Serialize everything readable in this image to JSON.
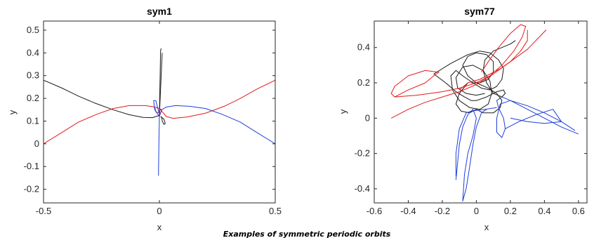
{
  "caption": "Examples of symmetric periodic orbits",
  "colors": {
    "black": "#1a1a1a",
    "red": "#e31a1c",
    "blue": "#1f3fd8",
    "axes": "#262626"
  },
  "chart_data": [
    {
      "type": "line",
      "title": "sym1",
      "xlabel": "x",
      "ylabel": "y",
      "xlim": [
        -0.5,
        0.5
      ],
      "ylim": [
        -0.26,
        0.54
      ],
      "xticks": [
        -0.5,
        0,
        0.5
      ],
      "xtick_labels": [
        "-0.5",
        "0",
        "0.5"
      ],
      "yticks": [
        -0.2,
        -0.1,
        0,
        0.1,
        0.2,
        0.3,
        0.4,
        0.5
      ],
      "ytick_labels": [
        "-0.2",
        "-0.1",
        "0",
        "0.1",
        "0.2",
        "0.3",
        "0.4",
        "0.5"
      ],
      "grid": false,
      "series": [
        {
          "color": "black",
          "points": [
            [
              -0.5,
              0.28
            ],
            [
              -0.42,
              0.245
            ],
            [
              -0.35,
              0.21
            ],
            [
              -0.28,
              0.18
            ],
            [
              -0.2,
              0.15
            ],
            [
              -0.13,
              0.128
            ],
            [
              -0.07,
              0.116
            ],
            [
              -0.03,
              0.115
            ],
            [
              0.0,
              0.125
            ],
            [
              0.012,
              0.4
            ]
          ]
        },
        {
          "color": "black",
          "points": [
            [
              0.0,
              0.125
            ],
            [
              0.005,
              0.41
            ],
            [
              0.008,
              0.42
            ]
          ]
        },
        {
          "color": "black",
          "points": [
            [
              0.005,
              0.12
            ],
            [
              0.02,
              0.108
            ],
            [
              0.025,
              0.09
            ],
            [
              0.02,
              0.085
            ],
            [
              0.012,
              0.1
            ],
            [
              0.01,
              0.12
            ]
          ]
        },
        {
          "color": "red",
          "points": [
            [
              -0.5,
              0.0
            ],
            [
              -0.42,
              0.05
            ],
            [
              -0.35,
              0.095
            ],
            [
              -0.27,
              0.13
            ],
            [
              -0.2,
              0.155
            ],
            [
              -0.13,
              0.168
            ],
            [
              -0.06,
              0.168
            ],
            [
              -0.02,
              0.162
            ],
            [
              0.0,
              0.155
            ],
            [
              0.03,
              0.12
            ],
            [
              0.06,
              0.112
            ],
            [
              0.12,
              0.118
            ],
            [
              0.2,
              0.135
            ],
            [
              0.28,
              0.165
            ],
            [
              0.35,
              0.2
            ],
            [
              0.42,
              0.24
            ],
            [
              0.5,
              0.28
            ]
          ]
        },
        {
          "color": "red",
          "points": [
            [
              -0.02,
              0.162
            ],
            [
              -0.015,
              0.14
            ],
            [
              0.005,
              0.135
            ],
            [
              0.01,
              0.15
            ],
            [
              0.0,
              0.155
            ]
          ]
        },
        {
          "color": "blue",
          "points": [
            [
              0.5,
              0.0
            ],
            [
              0.42,
              0.05
            ],
            [
              0.35,
              0.095
            ],
            [
              0.27,
              0.13
            ],
            [
              0.2,
              0.155
            ],
            [
              0.13,
              0.165
            ],
            [
              0.07,
              0.168
            ],
            [
              0.03,
              0.162
            ],
            [
              0.01,
              0.15
            ],
            [
              0.0,
              0.12
            ],
            [
              -0.002,
              0.0
            ],
            [
              -0.004,
              -0.14
            ]
          ]
        },
        {
          "color": "blue",
          "points": [
            [
              0.0,
              0.12
            ],
            [
              -0.02,
              0.15
            ],
            [
              -0.025,
              0.19
            ],
            [
              -0.015,
              0.19
            ],
            [
              -0.008,
              0.16
            ],
            [
              0.0,
              0.13
            ]
          ]
        }
      ]
    },
    {
      "type": "line",
      "title": "sym77",
      "xlabel": "x",
      "ylabel": "y",
      "xlim": [
        -0.6,
        0.65
      ],
      "ylim": [
        -0.48,
        0.55
      ],
      "xticks": [
        -0.6,
        -0.4,
        -0.2,
        0,
        0.2,
        0.4,
        0.6
      ],
      "xtick_labels": [
        "-0.6",
        "-0.4",
        "-0.2",
        "0",
        "0.2",
        "0.4",
        "0.6"
      ],
      "yticks": [
        -0.4,
        -0.2,
        0,
        0.2,
        0.4
      ],
      "ytick_labels": [
        "-0.4",
        "-0.2",
        "0",
        "0.2",
        "0.4"
      ],
      "grid": false,
      "series": [
        {
          "color": "black",
          "points": [
            [
              -0.25,
              0.25
            ],
            [
              -0.15,
              0.31
            ],
            [
              -0.05,
              0.36
            ],
            [
              0.02,
              0.38
            ],
            [
              0.08,
              0.37
            ],
            [
              0.13,
              0.33
            ],
            [
              0.16,
              0.28
            ],
            [
              0.15,
              0.22
            ],
            [
              0.12,
              0.18
            ],
            [
              0.08,
              0.16
            ],
            [
              0.03,
              0.17
            ],
            [
              -0.02,
              0.2
            ],
            [
              -0.08,
              0.24
            ],
            [
              -0.12,
              0.27
            ],
            [
              -0.15,
              0.24
            ],
            [
              -0.14,
              0.16
            ],
            [
              -0.1,
              0.1
            ],
            [
              -0.04,
              0.06
            ],
            [
              0.02,
              0.05
            ],
            [
              0.07,
              0.08
            ],
            [
              0.09,
              0.14
            ],
            [
              0.08,
              0.21
            ],
            [
              0.04,
              0.27
            ],
            [
              -0.02,
              0.3
            ],
            [
              -0.08,
              0.29
            ],
            [
              -0.12,
              0.23
            ],
            [
              -0.11,
              0.17
            ],
            [
              -0.06,
              0.14
            ],
            [
              0.0,
              0.13
            ],
            [
              0.05,
              0.14
            ]
          ]
        },
        {
          "color": "black",
          "points": [
            [
              -0.25,
              0.25
            ],
            [
              -0.18,
              0.2
            ],
            [
              -0.12,
              0.15
            ],
            [
              -0.07,
              0.12
            ],
            [
              -0.03,
              0.1
            ],
            [
              0.0,
              0.1
            ],
            [
              0.06,
              0.12
            ],
            [
              0.12,
              0.15
            ],
            [
              0.16,
              0.16
            ],
            [
              0.17,
              0.14
            ],
            [
              0.15,
              0.12
            ],
            [
              0.1,
              0.14
            ],
            [
              0.06,
              0.2
            ],
            [
              0.04,
              0.27
            ],
            [
              0.05,
              0.33
            ],
            [
              0.1,
              0.38
            ],
            [
              0.15,
              0.4
            ],
            [
              0.2,
              0.42
            ],
            [
              0.23,
              0.44
            ]
          ]
        },
        {
          "color": "black",
          "points": [
            [
              -0.05,
              0.2
            ],
            [
              -0.1,
              0.14
            ],
            [
              -0.12,
              0.08
            ],
            [
              -0.09,
              0.04
            ],
            [
              -0.04,
              0.03
            ],
            [
              0.0,
              0.05
            ],
            [
              0.04,
              0.03
            ],
            [
              0.1,
              0.03
            ],
            [
              0.14,
              0.06
            ],
            [
              0.15,
              0.1
            ],
            [
              0.12,
              0.14
            ],
            [
              0.07,
              0.17
            ],
            [
              0.0,
              0.2
            ],
            [
              -0.05,
              0.24
            ],
            [
              -0.08,
              0.3
            ],
            [
              -0.05,
              0.35
            ],
            [
              0.0,
              0.37
            ],
            [
              0.06,
              0.36
            ],
            [
              0.1,
              0.32
            ],
            [
              0.1,
              0.26
            ],
            [
              0.07,
              0.22
            ],
            [
              0.02,
              0.2
            ],
            [
              -0.03,
              0.2
            ]
          ]
        },
        {
          "color": "red",
          "points": [
            [
              -0.5,
              0.0
            ],
            [
              -0.4,
              0.05
            ],
            [
              -0.3,
              0.09
            ],
            [
              -0.2,
              0.12
            ],
            [
              -0.1,
              0.15
            ],
            [
              0.0,
              0.19
            ],
            [
              0.1,
              0.25
            ],
            [
              0.2,
              0.32
            ],
            [
              0.3,
              0.39
            ],
            [
              0.41,
              0.5
            ]
          ]
        },
        {
          "color": "red",
          "points": [
            [
              -0.48,
              0.12
            ],
            [
              -0.4,
              0.16
            ],
            [
              -0.3,
              0.2
            ],
            [
              -0.25,
              0.24
            ],
            [
              -0.22,
              0.26
            ],
            [
              -0.3,
              0.27
            ],
            [
              -0.4,
              0.24
            ],
            [
              -0.48,
              0.18
            ],
            [
              -0.5,
              0.14
            ],
            [
              -0.48,
              0.12
            ]
          ]
        },
        {
          "color": "red",
          "points": [
            [
              -0.48,
              0.12
            ],
            [
              -0.35,
              0.13
            ],
            [
              -0.2,
              0.15
            ],
            [
              -0.1,
              0.17
            ],
            [
              0.0,
              0.2
            ],
            [
              0.08,
              0.24
            ],
            [
              0.15,
              0.3
            ],
            [
              0.22,
              0.38
            ],
            [
              0.27,
              0.46
            ],
            [
              0.29,
              0.52
            ],
            [
              0.26,
              0.53
            ],
            [
              0.2,
              0.48
            ],
            [
              0.13,
              0.4
            ],
            [
              0.07,
              0.32
            ],
            [
              0.03,
              0.26
            ]
          ]
        },
        {
          "color": "red",
          "points": [
            [
              -0.1,
              0.16
            ],
            [
              -0.05,
              0.2
            ],
            [
              0.02,
              0.22
            ],
            [
              0.08,
              0.25
            ],
            [
              0.14,
              0.28
            ],
            [
              0.2,
              0.32
            ],
            [
              0.26,
              0.38
            ],
            [
              0.3,
              0.44
            ],
            [
              0.3,
              0.5
            ]
          ]
        },
        {
          "color": "blue",
          "points": [
            [
              0.6,
              -0.09
            ],
            [
              0.5,
              -0.05
            ],
            [
              0.4,
              0.0
            ],
            [
              0.3,
              0.05
            ],
            [
              0.2,
              0.1
            ],
            [
              0.15,
              0.12
            ],
            [
              0.12,
              0.1
            ],
            [
              0.13,
              0.06
            ],
            [
              0.16,
              0.0
            ],
            [
              0.17,
              -0.06
            ],
            [
              0.15,
              -0.11
            ],
            [
              0.12,
              -0.08
            ],
            [
              0.12,
              0.0
            ],
            [
              0.14,
              0.08
            ],
            [
              0.2,
              0.1
            ],
            [
              0.3,
              0.07
            ],
            [
              0.4,
              0.03
            ],
            [
              0.5,
              -0.02
            ],
            [
              0.58,
              -0.07
            ]
          ]
        },
        {
          "color": "blue",
          "points": [
            [
              -0.12,
              -0.35
            ],
            [
              -0.11,
              -0.25
            ],
            [
              -0.1,
              -0.15
            ],
            [
              -0.08,
              -0.05
            ],
            [
              -0.05,
              0.02
            ],
            [
              -0.02,
              0.05
            ],
            [
              0.0,
              0.0
            ],
            [
              -0.02,
              -0.1
            ],
            [
              -0.05,
              -0.2
            ],
            [
              -0.07,
              -0.32
            ],
            [
              -0.08,
              -0.47
            ],
            [
              -0.06,
              -0.4
            ],
            [
              -0.04,
              -0.28
            ],
            [
              -0.02,
              -0.15
            ],
            [
              0.0,
              -0.05
            ],
            [
              0.03,
              0.03
            ],
            [
              0.06,
              0.05
            ]
          ]
        },
        {
          "color": "blue",
          "points": [
            [
              0.17,
              -0.06
            ],
            [
              0.25,
              -0.02
            ],
            [
              0.35,
              0.02
            ],
            [
              0.45,
              0.05
            ],
            [
              0.5,
              -0.02
            ],
            [
              0.4,
              -0.03
            ],
            [
              0.3,
              -0.02
            ],
            [
              0.2,
              0.0
            ]
          ]
        },
        {
          "color": "blue",
          "points": [
            [
              -0.12,
              -0.33
            ],
            [
              -0.12,
              -0.2
            ],
            [
              -0.1,
              -0.06
            ],
            [
              -0.06,
              0.03
            ],
            [
              -0.03,
              0.04
            ],
            [
              0.05,
              0.05
            ],
            [
              0.12,
              0.06
            ]
          ]
        }
      ]
    }
  ]
}
